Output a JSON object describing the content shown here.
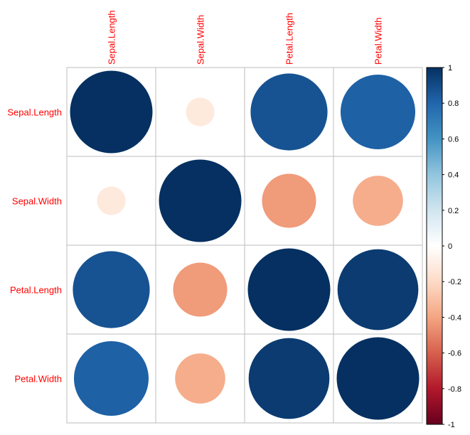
{
  "chart_data": {
    "type": "heatmap",
    "style": "circle correlation matrix",
    "variables": [
      "Sepal.Length",
      "Sepal.Width",
      "Petal.Length",
      "Petal.Width"
    ],
    "matrix": [
      [
        1.0,
        -0.12,
        0.87,
        0.82
      ],
      [
        -0.12,
        1.0,
        -0.43,
        -0.37
      ],
      [
        0.87,
        -0.43,
        1.0,
        0.96
      ],
      [
        0.82,
        -0.37,
        0.96,
        1.0
      ]
    ],
    "color_range": [
      -1,
      1
    ],
    "colorbar_ticks": [
      "1",
      "0.8",
      "0.6",
      "0.4",
      "0.2",
      "0",
      "-0.2",
      "-0.4",
      "-0.6",
      "-0.8",
      "-1"
    ],
    "colorbar_tick_values": [
      1,
      0.8,
      0.6,
      0.4,
      0.2,
      0,
      -0.2,
      -0.4,
      -0.6,
      -0.8,
      -1
    ],
    "palette": [
      "#67001F",
      "#B2182B",
      "#D6604D",
      "#F4A582",
      "#FDDBC7",
      "#FFFFFF",
      "#D1E5F0",
      "#92C5DE",
      "#4393C3",
      "#2166AC",
      "#053061"
    ],
    "label_color": "#FF0000",
    "grid_color": "#BEBEBE",
    "legend_position": "right"
  }
}
